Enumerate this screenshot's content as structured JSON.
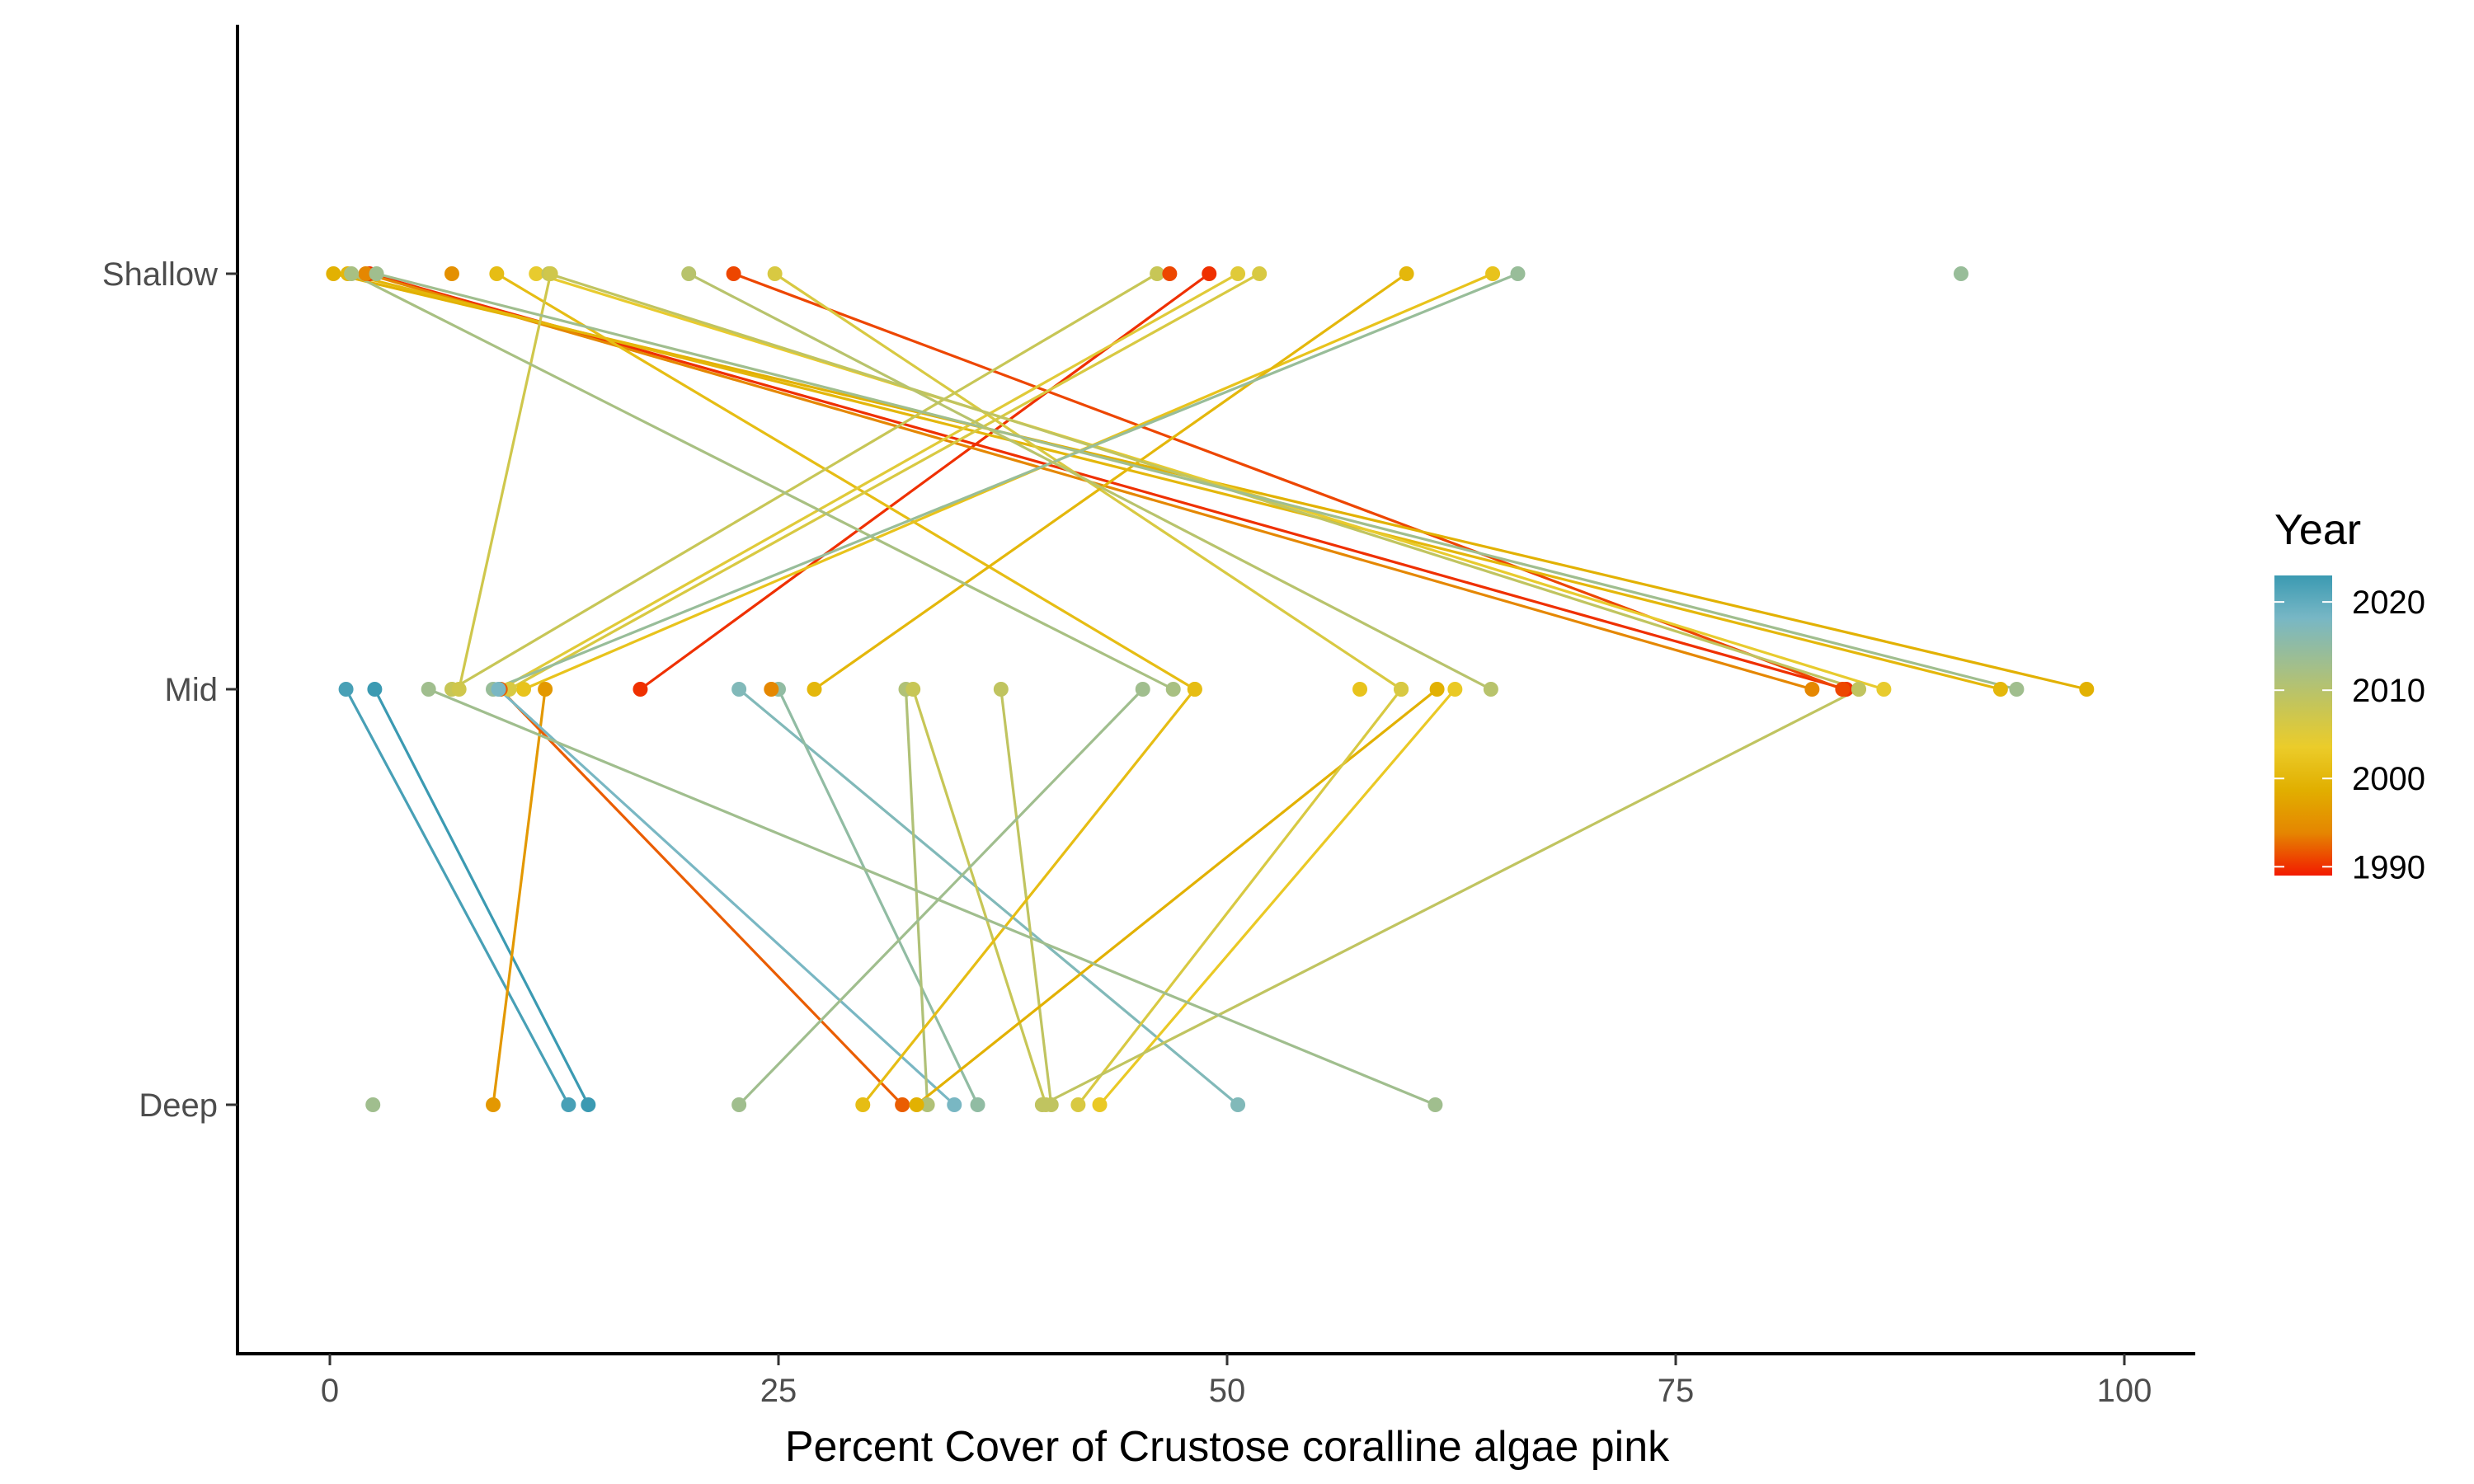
{
  "chart_data": {
    "type": "scatter",
    "title": "",
    "xlabel": "Percent Cover of Crustose coralline algae pink",
    "ylabel": "",
    "xlim": [
      -5,
      104.5
    ],
    "x_ticks": [
      0,
      25,
      50,
      75,
      100
    ],
    "x_tick_labels": [
      "0",
      "25",
      "50",
      "75",
      "100"
    ],
    "y_categories": [
      "Shallow",
      "Mid",
      "Deep"
    ],
    "grid": false,
    "legend": {
      "title": "Year",
      "placement": "right",
      "type": "colorbar",
      "range": [
        1989,
        2023
      ],
      "ticks": [
        1990,
        2000,
        2010,
        2020
      ],
      "tick_labels": [
        "1990",
        "2000",
        "2010",
        "2020"
      ],
      "colors": [
        "#F21A00",
        "#E58601",
        "#E1AF00",
        "#EBCC2A",
        "#C4C55A",
        "#9EBE91",
        "#78B7C5",
        "#3B9AB2"
      ]
    },
    "links": [
      {
        "year": 1990,
        "shallow": 2.2,
        "mid": 84.5
      },
      {
        "year": 1991,
        "shallow": 22.5,
        "mid": 84.3
      },
      {
        "year": 1990,
        "shallow": 49.0,
        "mid": 17.3
      },
      {
        "year": 1994,
        "shallow": 2.0,
        "mid": 82.6
      },
      {
        "year": 1999,
        "shallow": 0.2,
        "mid": 97.9
      },
      {
        "year": 2000,
        "shallow": 1.0,
        "mid": 93.1
      },
      {
        "year": 2004,
        "shallow": 11.5,
        "mid": 86.6
      },
      {
        "year": 2006,
        "shallow": 24.8,
        "mid": 59.7
      },
      {
        "year": 2001,
        "shallow": 9.3,
        "mid": 48.2
      },
      {
        "year": 2002,
        "shallow": 64.8,
        "mid": 10.8
      },
      {
        "year": 2000,
        "shallow": 60.0,
        "mid": 27.0
      },
      {
        "year": 2005,
        "shallow": 50.6,
        "mid": 9.5
      },
      {
        "year": 2006,
        "shallow": 51.8,
        "mid": 10.0
      },
      {
        "year": 2008,
        "shallow": 46.1,
        "mid": 6.8
      },
      {
        "year": 2009,
        "shallow": 12.2,
        "mid": 85.2
      },
      {
        "year": 2007,
        "shallow": 12.3,
        "mid": 7.2
      },
      {
        "year": 2012,
        "shallow": 1.2,
        "mid": 47.0
      },
      {
        "year": 2014,
        "shallow": 66.2,
        "mid": 9.1
      },
      {
        "year": 2013,
        "shallow": 2.6,
        "mid": 94.0
      },
      {
        "year": 2010,
        "shallow": 20.0,
        "mid": 64.7
      }
    ],
    "lone_shallow": [
      {
        "year": 1995,
        "x": 6.8
      },
      {
        "year": 1991,
        "x": 46.8
      },
      {
        "year": 2014,
        "x": 90.9
      }
    ],
    "links_mid_deep": [
      {
        "year": 2022,
        "mid": 0.9,
        "deep": 13.3
      },
      {
        "year": 2023,
        "mid": 2.5,
        "deep": 14.4
      },
      {
        "year": 1996,
        "mid": 12.0,
        "deep": 9.1
      },
      {
        "year": 1992,
        "mid": 9.5,
        "deep": 31.9
      },
      {
        "year": 2018,
        "mid": 9.4,
        "deep": 34.8
      },
      {
        "year": 2017,
        "mid": 22.8,
        "deep": 50.6
      },
      {
        "year": 2015,
        "mid": 25.0,
        "deep": 36.1
      },
      {
        "year": 2011,
        "mid": 32.1,
        "deep": 33.3
      },
      {
        "year": 2008,
        "mid": 32.5,
        "deep": 39.9
      },
      {
        "year": 2009,
        "mid": 37.4,
        "deep": 40.2
      },
      {
        "year": 2013,
        "mid": 45.3,
        "deep": 22.8
      },
      {
        "year": 2001,
        "mid": 48.2,
        "deep": 29.7
      },
      {
        "year": 1999,
        "mid": 61.7,
        "deep": 32.7
      },
      {
        "year": 2003,
        "mid": 62.7,
        "deep": 42.9
      },
      {
        "year": 2006,
        "mid": 59.7,
        "deep": 41.7
      },
      {
        "year": 2009,
        "mid": 85.2,
        "deep": 39.7
      },
      {
        "year": 2013,
        "mid": 5.5,
        "deep": 61.6
      }
    ],
    "lone_mid": [
      {
        "year": 1994,
        "x": 24.6
      },
      {
        "year": 2002,
        "x": 57.4
      }
    ],
    "lone_deep": [
      {
        "year": 2013,
        "x": 2.4
      }
    ]
  }
}
